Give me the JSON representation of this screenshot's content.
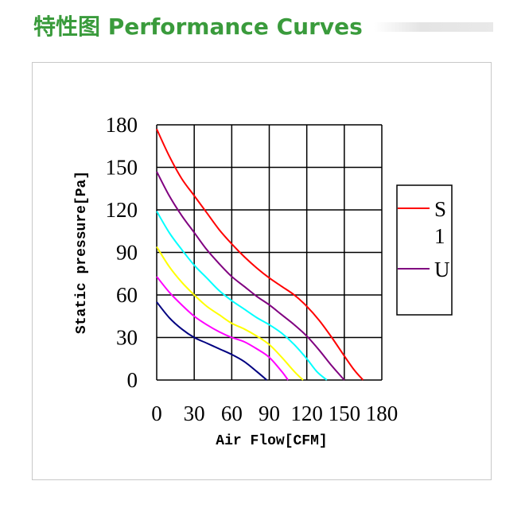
{
  "header": {
    "title": "特性图 Performance Curves"
  },
  "chart_data": {
    "type": "line",
    "xlabel": "Air Flow[CFM]",
    "ylabel": "Static pressure[Pa]",
    "xlim": [
      0,
      180
    ],
    "ylim": [
      0,
      180
    ],
    "x_ticks": [
      "0",
      "30",
      "60",
      "90",
      "120",
      "150",
      "180"
    ],
    "y_ticks": [
      "0",
      "30",
      "60",
      "90",
      "120",
      "150",
      "180"
    ],
    "grid": true,
    "legend_position": "right",
    "legend_entries": [
      "S",
      "1",
      "U"
    ],
    "series": [
      {
        "color": "#ff0000",
        "x": [
          0,
          10,
          20,
          30,
          40,
          50,
          60,
          70,
          80,
          90,
          100,
          110,
          120,
          130,
          140,
          150,
          158,
          165
        ],
        "values": [
          177,
          158,
          142,
          130,
          118,
          106,
          96,
          87,
          79,
          72,
          66,
          60,
          52,
          42,
          30,
          17,
          7,
          0
        ]
      },
      {
        "color": "#800080",
        "x": [
          0,
          10,
          20,
          30,
          40,
          50,
          60,
          70,
          80,
          90,
          100,
          110,
          120,
          130,
          140,
          150
        ],
        "values": [
          147,
          130,
          116,
          104,
          92,
          82,
          73,
          66,
          59,
          53,
          46,
          39,
          31,
          21,
          10,
          0
        ]
      },
      {
        "color": "#00ffff",
        "x": [
          0,
          10,
          20,
          30,
          40,
          50,
          60,
          70,
          80,
          90,
          100,
          110,
          120,
          128,
          136
        ],
        "values": [
          119,
          104,
          92,
          81,
          72,
          63,
          56,
          50,
          44,
          39,
          33,
          25,
          15,
          6,
          0
        ]
      },
      {
        "color": "#ffff00",
        "x": [
          0,
          10,
          20,
          30,
          40,
          50,
          60,
          70,
          80,
          90,
          100,
          110,
          117
        ],
        "values": [
          94,
          80,
          69,
          60,
          52,
          46,
          40,
          36,
          31,
          25,
          16,
          6,
          0
        ]
      },
      {
        "color": "#ff00ff",
        "x": [
          0,
          10,
          20,
          30,
          40,
          50,
          60,
          70,
          80,
          90,
          100,
          105
        ],
        "values": [
          73,
          62,
          53,
          45,
          39,
          34,
          30,
          27,
          22,
          16,
          6,
          0
        ]
      },
      {
        "color": "#000080",
        "x": [
          0,
          10,
          20,
          30,
          40,
          50,
          60,
          70,
          80,
          88
        ],
        "values": [
          55,
          44,
          36,
          30,
          26,
          22,
          18,
          13,
          6,
          0
        ]
      }
    ],
    "legend_swatches": [
      "#ff0000",
      "#800080"
    ]
  }
}
